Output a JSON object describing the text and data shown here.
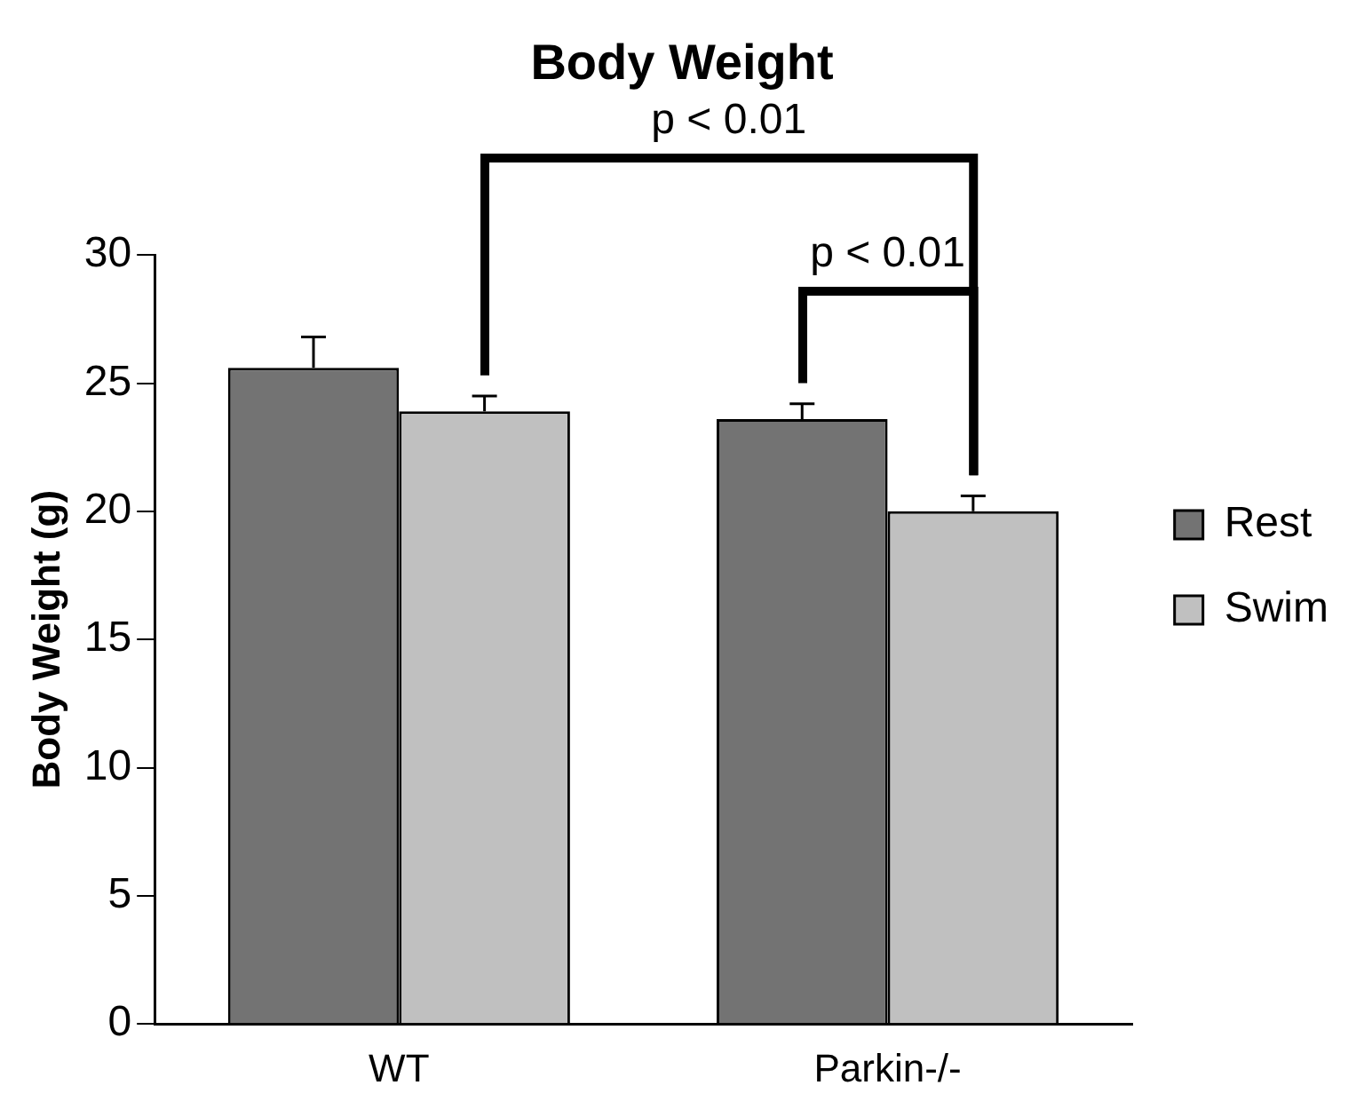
{
  "chart_data": {
    "type": "bar",
    "title": "Body Weight",
    "ylabel": "Body Weight (g)",
    "categories": [
      "WT",
      "Parkin-/-"
    ],
    "series": [
      {
        "name": "Rest",
        "color": "#737373",
        "values": [
          25.6,
          23.6
        ],
        "errors": [
          1.2,
          0.6
        ]
      },
      {
        "name": "Swim",
        "color": "#c0c0c0",
        "values": [
          23.9,
          20.0
        ],
        "errors": [
          0.6,
          0.6
        ]
      }
    ],
    "ylim": [
      0,
      30
    ],
    "yticks": [
      0,
      5,
      10,
      15,
      20,
      25,
      30
    ],
    "grid": false,
    "legend": "right",
    "annotations": [
      "p < 0.01",
      "p < 0.01"
    ]
  }
}
